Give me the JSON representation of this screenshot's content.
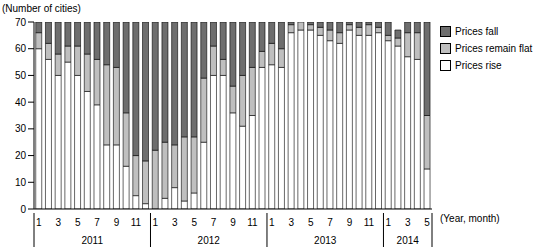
{
  "chart_data": {
    "type": "bar",
    "stacked": true,
    "y_label": "(Number of cities)",
    "x_label": "(Year, month)",
    "categories": [
      "1",
      null,
      "3",
      null,
      "5",
      null,
      "7",
      null,
      "9",
      null,
      "11",
      null,
      "1",
      null,
      "3",
      null,
      "5",
      null,
      "7",
      null,
      "9",
      null,
      "11",
      null,
      "1",
      null,
      "3",
      null,
      "5",
      null,
      "7",
      null,
      "9",
      null,
      "11",
      null,
      "1",
      null,
      "3",
      null,
      "5"
    ],
    "groups": [
      {
        "label": "2011",
        "count": 12
      },
      {
        "label": "2012",
        "count": 12
      },
      {
        "label": "2013",
        "count": 12
      },
      {
        "label": "2014",
        "count": 5
      }
    ],
    "series": [
      {
        "name": "Prices rise",
        "color": "#ffffff",
        "values": [
          60,
          56,
          50,
          55,
          50,
          44,
          39,
          24,
          24,
          16,
          5,
          2,
          0,
          4,
          8,
          3,
          6,
          25,
          50,
          50,
          36,
          31,
          35,
          53,
          54,
          53,
          66,
          67,
          67,
          65,
          63,
          62,
          67,
          65,
          65,
          66,
          63,
          61,
          57,
          56,
          15
        ]
      },
      {
        "name": "Prices remain flat",
        "color": "#bfbfbf",
        "values": [
          6,
          6,
          8,
          6,
          11,
          14,
          17,
          30,
          29,
          20,
          15,
          16,
          22,
          21,
          16,
          24,
          21,
          24,
          11,
          6,
          10,
          19,
          18,
          6,
          8,
          7,
          3,
          3,
          2,
          3,
          4,
          4,
          2,
          3,
          4,
          2,
          2,
          3,
          9,
          10,
          20
        ]
      },
      {
        "name": "Prices fall",
        "color": "#6e6e6e",
        "values": [
          4,
          8,
          12,
          9,
          9,
          12,
          14,
          16,
          17,
          34,
          50,
          52,
          48,
          45,
          46,
          43,
          43,
          21,
          9,
          14,
          24,
          20,
          17,
          11,
          8,
          10,
          1,
          0,
          1,
          2,
          3,
          4,
          1,
          2,
          1,
          2,
          5,
          3,
          4,
          4,
          35
        ]
      }
    ],
    "ylim": [
      0,
      70
    ],
    "yticks": [
      0,
      10,
      20,
      30,
      40,
      50,
      60,
      70
    ],
    "grid": false,
    "legend": "right"
  }
}
